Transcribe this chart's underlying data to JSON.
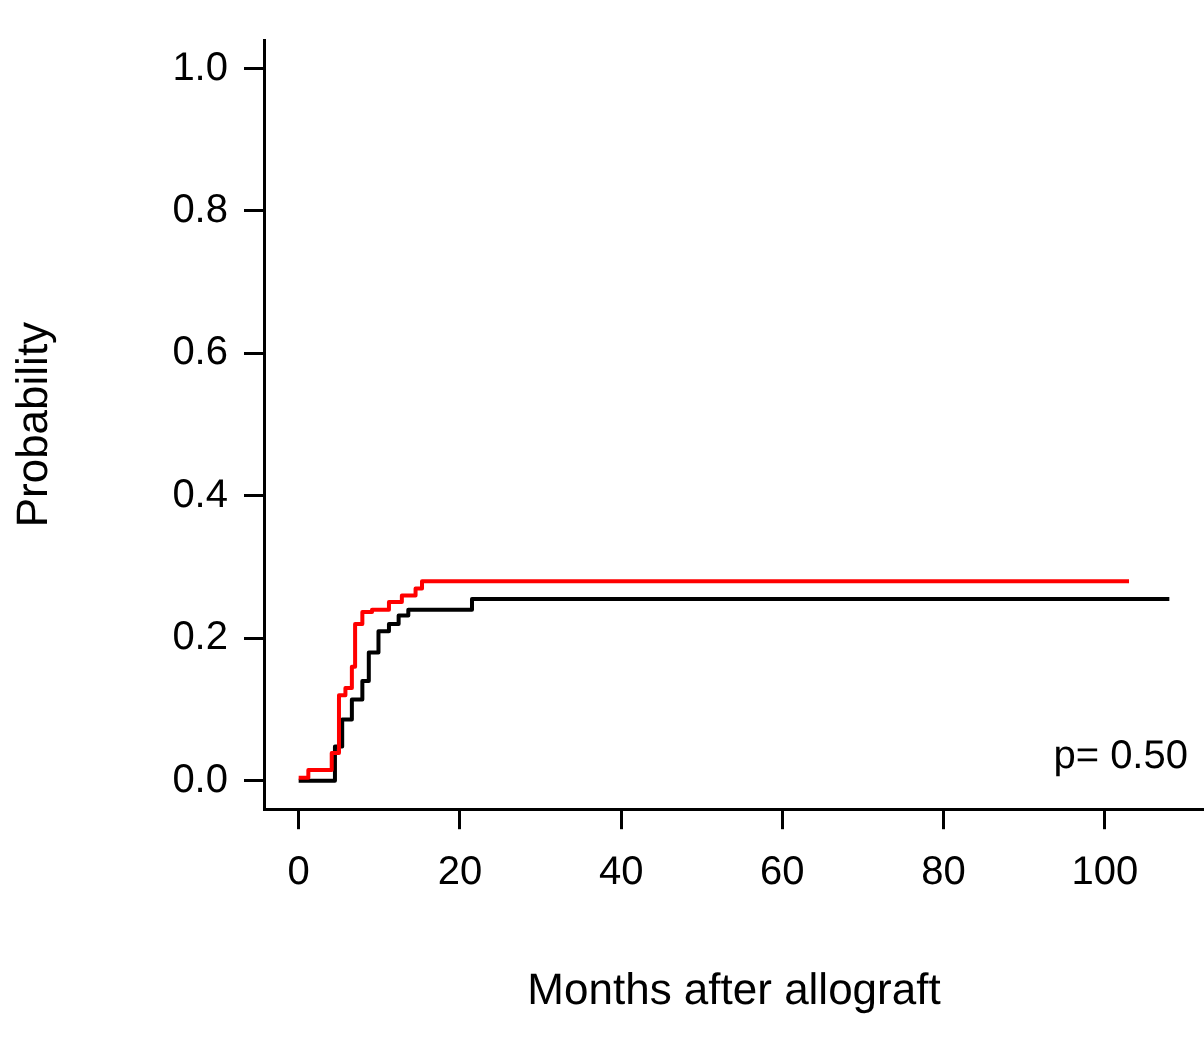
{
  "chart_data": {
    "type": "step",
    "xlabel": "Months after allograft",
    "ylabel": "Probability",
    "xlim": [
      -4.3,
      112.3
    ],
    "xticks": [
      0,
      20,
      40,
      60,
      80,
      100
    ],
    "ylim": [
      -0.04,
      1.04
    ],
    "yticks": [
      {
        "value": 0,
        "label": "0.0"
      },
      {
        "value": 0.2,
        "label": "0.2"
      },
      {
        "value": 0.4,
        "label": "0.4"
      },
      {
        "value": 0.6,
        "label": "0.6"
      },
      {
        "value": 0.8,
        "label": "0.8"
      },
      {
        "value": 1,
        "label": "1.0"
      }
    ],
    "grid": false,
    "legend": false,
    "annotations": [
      "p= 0.50"
    ],
    "series": [
      {
        "color": "#ff0000",
        "x": [
          0,
          1.2,
          4.1,
          5.0,
          5.8,
          6.6,
          7.0,
          7.9,
          9.1,
          11.2,
          12.8,
          14.5,
          15.3,
          103
        ],
        "values": [
          0.004,
          0.015,
          0.039,
          0.12,
          0.13,
          0.16,
          0.22,
          0.237,
          0.24,
          0.251,
          0.26,
          0.27,
          0.28,
          0.28
        ]
      },
      {
        "color": "#000000",
        "x": [
          0,
          4.5,
          5.4,
          6.6,
          7.9,
          8.7,
          9.9,
          11.2,
          12.4,
          13.6,
          21.5,
          108
        ],
        "values": [
          0,
          0.048,
          0.086,
          0.114,
          0.14,
          0.18,
          0.21,
          0.22,
          0.232,
          0.24,
          0.255,
          0.255
        ]
      }
    ]
  }
}
